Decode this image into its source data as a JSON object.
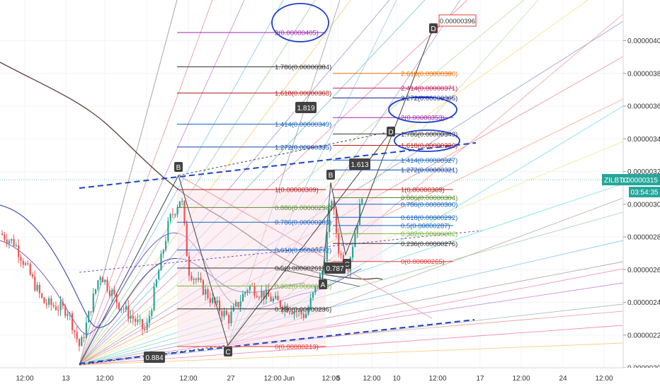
{
  "chart_data": {
    "type": "candlestick",
    "symbol": "ZILBTC",
    "current_price": "0.00000315",
    "countdown": "03:54:35",
    "ylim": [
      2e-06,
      4.2e-06
    ],
    "y_ticks": [
      "0.00000400",
      "0.00000380",
      "0.00000360",
      "0.00000340",
      "0.00000320",
      "0.00000300",
      "0.00000280",
      "0.00000260",
      "0.00000240",
      "0.00000220",
      "0.00000200"
    ],
    "y_tick_values": [
      400,
      380,
      360,
      340,
      320,
      300,
      280,
      260,
      240,
      220,
      200
    ],
    "x_ticks": [
      "12:00",
      "13",
      "12:00",
      "20",
      "12:00",
      "27",
      "12:00",
      "Jun",
      "12:00",
      "5",
      "12:00",
      "10",
      "12:00",
      "17",
      "12:00",
      "24",
      "12:00"
    ],
    "price_flag": "0.00000396",
    "left_fib": [
      {
        "label": "2(0.00000405)",
        "value": 405,
        "color": "#9c27b0"
      },
      {
        "label": "1.786(0.00000384)",
        "value": 384,
        "color": "#333333"
      },
      {
        "label": "1.618(0.00000368)",
        "value": 368,
        "color": "#b71c1c"
      },
      {
        "label": "1.414(0.00000349)",
        "value": 349,
        "color": "#1565c0"
      },
      {
        "label": "1.272(0.00000335)",
        "value": 335,
        "color": "#0d47a1"
      },
      {
        "label": "1(0.00000309)",
        "value": 309,
        "color": "#b71c1c"
      },
      {
        "label": "0.886(0.00000298)",
        "value": 298,
        "color": "#558b2f"
      },
      {
        "label": "0.786(0.00000289)",
        "value": 289,
        "color": "#1565c0"
      },
      {
        "label": "0.618(0.00000272)",
        "value": 272,
        "color": "#1565c0"
      },
      {
        "label": "0.5(0.00000261)",
        "value": 261,
        "color": "#333333"
      },
      {
        "label": "0.382(0.00000250)",
        "value": 250,
        "color": "#7cb342"
      },
      {
        "label": "0.236(0.00000236)",
        "value": 236,
        "color": "#333333"
      },
      {
        "label": "0(0.00000213)",
        "value": 213,
        "color": "#e53935"
      }
    ],
    "right_fib": [
      {
        "label": "2.618(0.00000380)",
        "value": 380,
        "color": "#ef6c00"
      },
      {
        "label": "2.414(0.00000371)",
        "value": 371,
        "color": "#c2185b"
      },
      {
        "label": "2.272(0.00000365)",
        "value": 365,
        "color": "#1a237e"
      },
      {
        "label": "2(0.00000353)",
        "value": 353,
        "color": "#9c27b0"
      },
      {
        "label": "1.786(0.00000343)",
        "value": 343,
        "color": "#333333"
      },
      {
        "label": "1.618(0.00000336)",
        "value": 336,
        "color": "#b71c1c"
      },
      {
        "label": "1.414(0.00000327)",
        "value": 327,
        "color": "#1565c0"
      },
      {
        "label": "1.272(0.00000321)",
        "value": 321,
        "color": "#0d47a1"
      },
      {
        "label": "1(0.00000309)",
        "value": 309,
        "color": "#b71c1c"
      },
      {
        "label": "0.886(0.00000304)",
        "value": 304,
        "color": "#558b2f"
      },
      {
        "label": "0.786(0.00000300)",
        "value": 300,
        "color": "#1565c0"
      },
      {
        "label": "0.618(0.00000292)",
        "value": 292,
        "color": "#1565c0"
      },
      {
        "label": "0.5(0.00000287)",
        "value": 287,
        "color": "#1565c0"
      },
      {
        "label": "0.382(0.00000282)",
        "value": 282,
        "color": "#7cb342"
      },
      {
        "label": "0.236(0.00000276)",
        "value": 276,
        "color": "#333333"
      },
      {
        "label": "0(0.00000265)",
        "value": 265,
        "color": "#e53935"
      }
    ],
    "point_labels": [
      "B",
      "C",
      "A",
      "D",
      "B",
      "C",
      "D"
    ],
    "ratio_labels": [
      "1.819",
      "0.884",
      "1.613",
      "0.787"
    ]
  },
  "colors": {
    "up": "#26a69a",
    "down": "#ef5350",
    "accent": "#2962ff",
    "grid": "#f0f3fa"
  }
}
